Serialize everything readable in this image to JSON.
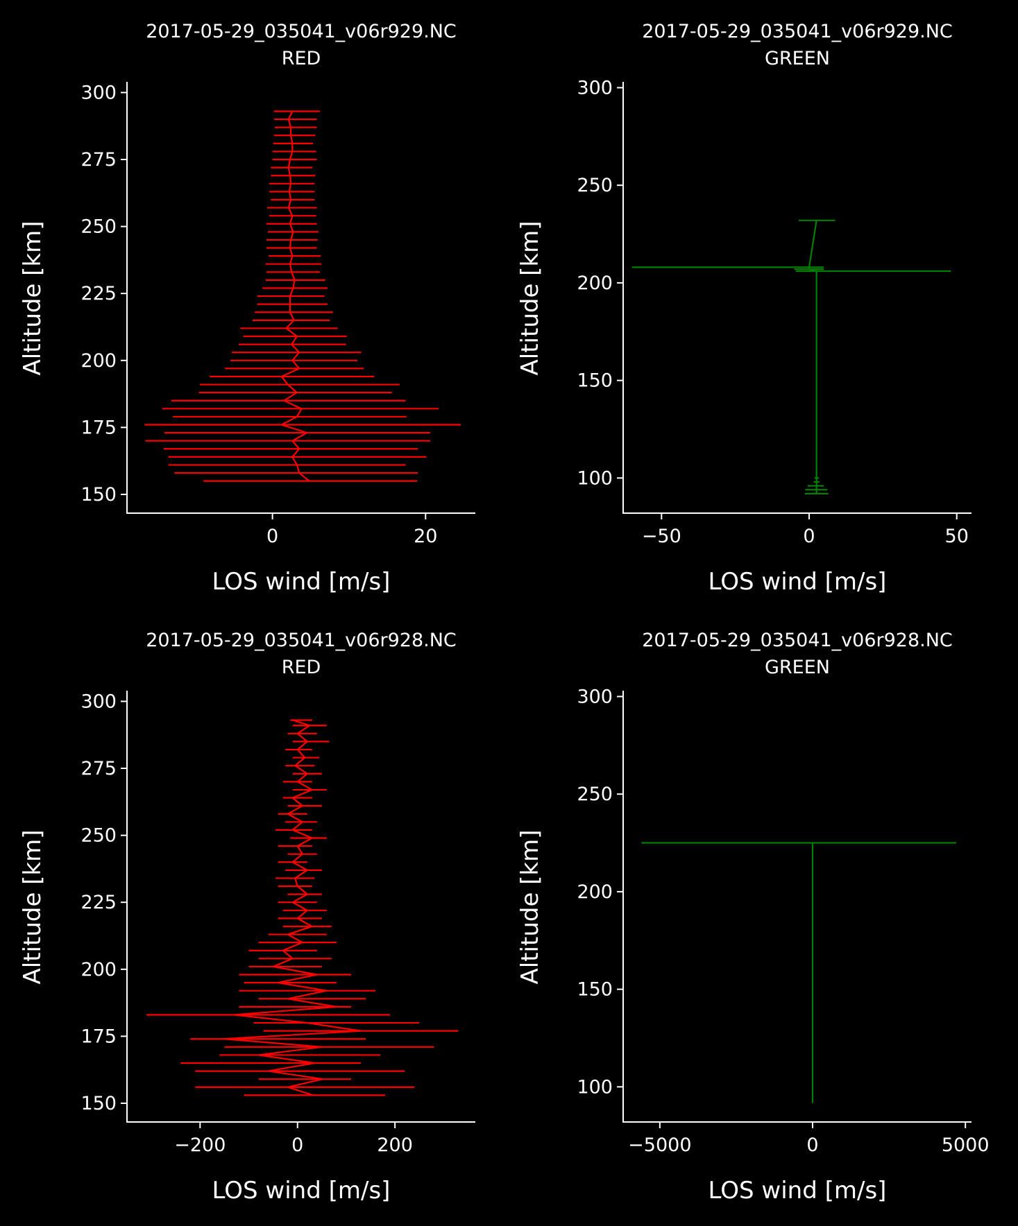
{
  "figure": {
    "background": "#000000",
    "foreground": "#ffffff"
  },
  "chart_data": [
    {
      "type": "errorbar",
      "title_file": "2017-05-29_035041_v06r929.NC",
      "title_channel": "RED",
      "xlabel": "LOS wind [m/s]",
      "ylabel": "Altitude [km]",
      "xlim": [
        -19,
        26.5
      ],
      "ylim": [
        143,
        304
      ],
      "xticks": [
        0,
        20
      ],
      "yticks": [
        150,
        175,
        200,
        225,
        250,
        275,
        300
      ],
      "color": "#ff0000",
      "altitude": [
        155,
        158,
        161,
        164,
        167,
        170,
        173,
        176,
        179,
        182,
        185,
        188,
        191,
        194,
        197,
        200,
        203,
        206,
        209,
        212,
        215,
        218,
        221,
        224,
        227,
        230,
        233,
        236,
        239,
        242,
        245,
        248,
        251,
        254,
        257,
        260,
        263,
        266,
        269,
        272,
        275,
        278,
        281,
        284,
        287,
        290,
        293
      ],
      "wind": [
        4.8,
        3.5,
        3.2,
        2.6,
        3.5,
        2.6,
        4.5,
        1.2,
        3.2,
        3.8,
        1.5,
        3.2,
        2.0,
        1.2,
        3.5,
        2.6,
        3.5,
        2.5,
        3.2,
        1.8,
        2.8,
        2.3,
        2.3,
        2.3,
        2.7,
        2.9,
        2.5,
        2.3,
        2.6,
        2.3,
        2.4,
        2.7,
        2.3,
        2.6,
        2.1,
        2.4,
        2.2,
        2.4,
        2.3,
        2.1,
        2.3,
        2.6,
        2.6,
        2.4,
        2.4,
        2.1,
        2.6
      ],
      "err_low": [
        -9.0,
        -12.8,
        -13.6,
        -13.6,
        -14.2,
        -16.6,
        -14.1,
        -16.7,
        -13.0,
        -14.4,
        -13.2,
        -9.6,
        -9.5,
        -8.2,
        -6.2,
        -5.5,
        -5.3,
        -4.4,
        -3.8,
        -4.2,
        -2.6,
        -2.3,
        -2.0,
        -2.0,
        -1.3,
        -0.9,
        -0.8,
        -0.9,
        -0.5,
        -0.8,
        -0.8,
        -0.6,
        -0.8,
        -0.4,
        -0.7,
        -0.2,
        -0.4,
        -0.4,
        -0.2,
        -0.2,
        0.0,
        0.0,
        0.1,
        0.2,
        0.3,
        0.2,
        0.2
      ],
      "err_high": [
        18.9,
        19.0,
        17.4,
        20.1,
        19.0,
        20.6,
        20.6,
        24.6,
        17.5,
        21.7,
        17.4,
        15.6,
        16.6,
        13.3,
        11.9,
        11.1,
        11.6,
        9.6,
        9.7,
        8.5,
        7.5,
        7.9,
        7.2,
        6.8,
        7.2,
        6.9,
        6.2,
        6.4,
        6.3,
        5.8,
        5.9,
        6.0,
        5.8,
        5.7,
        5.8,
        5.5,
        5.5,
        5.5,
        5.6,
        5.2,
        5.8,
        5.7,
        5.3,
        5.6,
        5.8,
        5.8,
        6.2
      ]
    },
    {
      "type": "errorbar",
      "title_file": "2017-05-29_035041_v06r929.NC",
      "title_channel": "GREEN",
      "xlabel": "LOS wind [m/s]",
      "ylabel": "Altitude [km]",
      "xlim": [
        -63,
        55
      ],
      "ylim": [
        82,
        303
      ],
      "xticks": [
        -50,
        0,
        50
      ],
      "yticks": [
        100,
        150,
        200,
        250,
        300
      ],
      "color": "#008000",
      "altitude": [
        92,
        94,
        96,
        98,
        100,
        103,
        106,
        109,
        112,
        206,
        207,
        208,
        232
      ],
      "wind": [
        2.5,
        2.5,
        2.5,
        2.5,
        2.5,
        2.5,
        2.5,
        2.5,
        2.5,
        2.5,
        0,
        0,
        2.5
      ],
      "err_low": [
        -1.5,
        -1.3,
        -0.5,
        1.5,
        1.8,
        2.2,
        2.3,
        2.3,
        2.4,
        -4.5,
        -5,
        -60,
        -3.5
      ],
      "err_high": [
        6.5,
        6.2,
        5.0,
        3.5,
        3.3,
        2.8,
        2.7,
        2.7,
        2.6,
        48,
        5,
        5,
        8.8
      ]
    },
    {
      "type": "errorbar",
      "title_file": "2017-05-29_035041_v06r928.NC",
      "title_channel": "RED",
      "xlabel": "LOS wind [m/s]",
      "ylabel": "Altitude [km]",
      "xlim": [
        -350,
        365
      ],
      "ylim": [
        143,
        304
      ],
      "xticks": [
        -200,
        0,
        200
      ],
      "yticks": [
        150,
        175,
        200,
        225,
        250,
        275,
        300
      ],
      "color": "#ff0000",
      "altitude": [
        153,
        156,
        159,
        162,
        165,
        168,
        171,
        174,
        177,
        180,
        183,
        186,
        189,
        192,
        195,
        198,
        201,
        204,
        207,
        210,
        213,
        216,
        219,
        222,
        225,
        228,
        231,
        234,
        237,
        240,
        243,
        246,
        249,
        252,
        255,
        258,
        261,
        264,
        267,
        270,
        273,
        276,
        279,
        282,
        285,
        288,
        291,
        293
      ],
      "wind": [
        32,
        -20,
        52,
        -60,
        35,
        -80,
        50,
        -150,
        130,
        20,
        -130,
        80,
        -20,
        60,
        -40,
        40,
        -50,
        -10,
        -30,
        10,
        -20,
        30,
        0,
        20,
        -10,
        20,
        0,
        -5,
        20,
        -10,
        10,
        0,
        30,
        -10,
        10,
        -20,
        10,
        -10,
        30,
        0,
        20,
        -5,
        15,
        0,
        20,
        0,
        25,
        -10
      ],
      "err_low": [
        -110,
        -210,
        -80,
        -210,
        -240,
        -160,
        -150,
        -220,
        -70,
        -90,
        -310,
        -120,
        -80,
        -120,
        -110,
        -120,
        -100,
        -80,
        -100,
        -80,
        -60,
        -30,
        -40,
        -30,
        -40,
        -20,
        -40,
        -45,
        -25,
        -40,
        -20,
        -40,
        -15,
        -45,
        -25,
        -40,
        -20,
        -30,
        -10,
        -30,
        -10,
        -25,
        -10,
        -25,
        -10,
        -20,
        -10,
        -15
      ],
      "err_high": [
        180,
        240,
        110,
        220,
        130,
        170,
        280,
        140,
        330,
        250,
        190,
        110,
        140,
        160,
        80,
        110,
        50,
        70,
        40,
        80,
        60,
        70,
        50,
        60,
        40,
        50,
        30,
        35,
        50,
        20,
        40,
        30,
        60,
        30,
        40,
        20,
        50,
        30,
        60,
        30,
        50,
        35,
        45,
        30,
        65,
        40,
        60,
        30
      ]
    },
    {
      "type": "errorbar",
      "title_file": "2017-05-29_035041_v06r928.NC",
      "title_channel": "GREEN",
      "xlabel": "LOS wind [m/s]",
      "ylabel": "Altitude [km]",
      "xlim": [
        -6200,
        5200
      ],
      "ylim": [
        82,
        303
      ],
      "xticks": [
        -5000,
        0,
        5000
      ],
      "yticks": [
        100,
        150,
        200,
        250,
        300
      ],
      "color": "#008000",
      "altitude": [
        92,
        96,
        100,
        104,
        108,
        112,
        225
      ],
      "wind": [
        0,
        0,
        0,
        0,
        0,
        0,
        0
      ],
      "err_low": [
        -20,
        -20,
        -20,
        -20,
        -20,
        -20,
        -5600
      ],
      "err_high": [
        20,
        20,
        20,
        20,
        20,
        20,
        4700
      ]
    }
  ]
}
